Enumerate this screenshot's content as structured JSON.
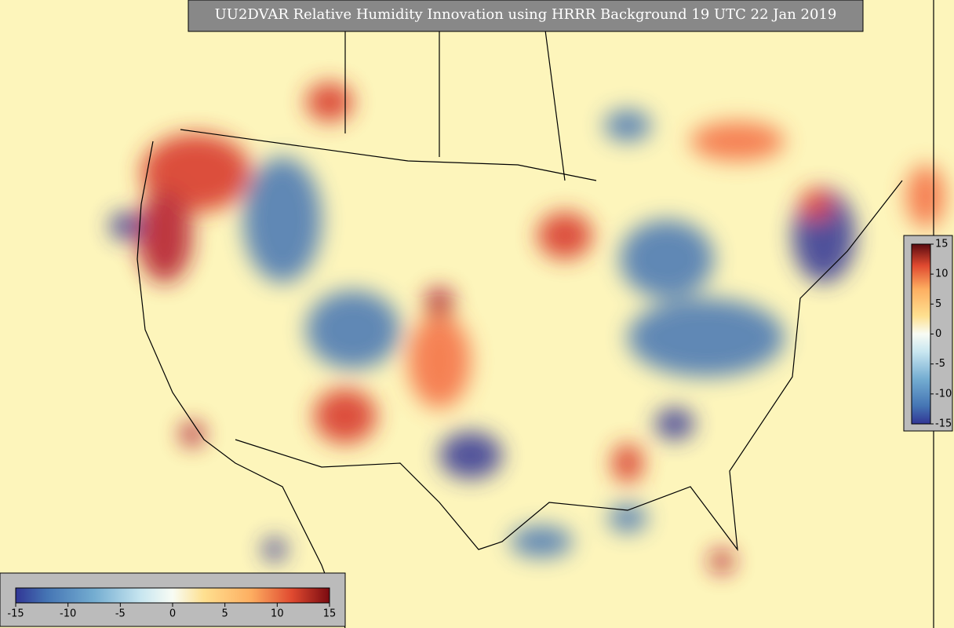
{
  "title": "UU2DVAR Relative Humidity Innovation using HRRR Background 19 UTC 22 Jan 2019",
  "horizontal_colorbar": {
    "lim": [
      -15,
      15
    ],
    "ticks": [
      -15,
      -10,
      -5,
      0,
      5,
      10,
      15
    ]
  },
  "vertical_colorbar": {
    "lim": [
      -15,
      15
    ],
    "ticks": [
      -15,
      -10,
      -5,
      0,
      5,
      10,
      15
    ]
  }
}
